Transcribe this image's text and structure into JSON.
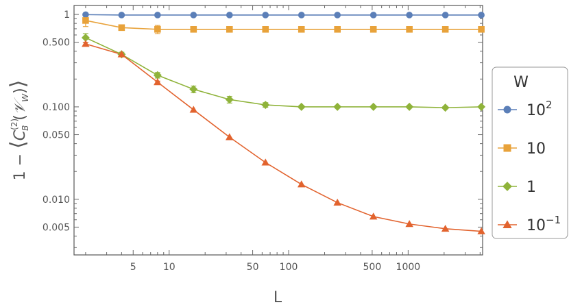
{
  "chart_data": {
    "type": "line",
    "title": "",
    "xlabel": "L",
    "ylabel": "1 − ⟨C_B^(2)(𝒱_W)⟩",
    "xscale": "log",
    "yscale": "log",
    "xlim": [
      1.6,
      4200
    ],
    "ylim": [
      0.0025,
      1.25
    ],
    "x_ticks": [
      {
        "value": 5,
        "label": "5"
      },
      {
        "value": 10,
        "label": "10"
      },
      {
        "value": 50,
        "label": "50"
      },
      {
        "value": 100,
        "label": "100"
      },
      {
        "value": 500,
        "label": "500"
      },
      {
        "value": 1000,
        "label": "1000"
      }
    ],
    "y_ticks": [
      {
        "value": 1,
        "label": "1"
      },
      {
        "value": 0.5,
        "label": "0.500"
      },
      {
        "value": 0.1,
        "label": "0.100"
      },
      {
        "value": 0.05,
        "label": "0.050"
      },
      {
        "value": 0.01,
        "label": "0.010"
      },
      {
        "value": 0.005,
        "label": "0.005"
      }
    ],
    "grid": false,
    "legend": {
      "title": "W",
      "placement": "right"
    },
    "x": [
      2,
      4,
      8,
      16,
      32,
      64,
      128,
      256,
      512,
      1024,
      2048,
      4096
    ],
    "series": [
      {
        "name": "10²",
        "name_base": "10",
        "name_exp": "2",
        "color": "#5b7fb8",
        "marker": "circle",
        "values": [
          0.995,
          0.985,
          0.985,
          0.985,
          0.985,
          0.985,
          0.985,
          0.985,
          0.985,
          0.985,
          0.985,
          0.985
        ],
        "errors": [
          0,
          0,
          0,
          0,
          0,
          0,
          0,
          0,
          0,
          0,
          0,
          0
        ]
      },
      {
        "name": "10",
        "name_base": "10",
        "name_exp": "",
        "color": "#e8a23a",
        "marker": "square",
        "values": [
          0.86,
          0.72,
          0.69,
          0.69,
          0.69,
          0.69,
          0.69,
          0.69,
          0.69,
          0.69,
          0.69,
          0.69
        ],
        "errors": [
          0.12,
          0.04,
          0.07,
          0.02,
          0.01,
          0.01,
          0,
          0,
          0,
          0,
          0,
          0
        ]
      },
      {
        "name": "1",
        "name_base": "1",
        "name_exp": "",
        "color": "#8fb33a",
        "marker": "diamond",
        "values": [
          0.56,
          0.37,
          0.22,
          0.155,
          0.12,
          0.105,
          0.1,
          0.1,
          0.1,
          0.1,
          0.098,
          0.1
        ],
        "errors": [
          0.06,
          0.02,
          0.015,
          0.013,
          0.01,
          0.006,
          0.003,
          0.002,
          0,
          0,
          0,
          0
        ]
      },
      {
        "name": "10⁻¹",
        "name_base": "10",
        "name_exp": "−1",
        "color": "#e2632e",
        "marker": "triangle",
        "values": [
          0.48,
          0.37,
          0.185,
          0.093,
          0.047,
          0.025,
          0.0145,
          0.0092,
          0.0065,
          0.0054,
          0.0048,
          0.0045
        ],
        "errors": [
          0.02,
          0.01,
          0.005,
          0,
          0,
          0,
          0,
          0,
          0,
          0,
          0,
          0
        ]
      }
    ]
  }
}
